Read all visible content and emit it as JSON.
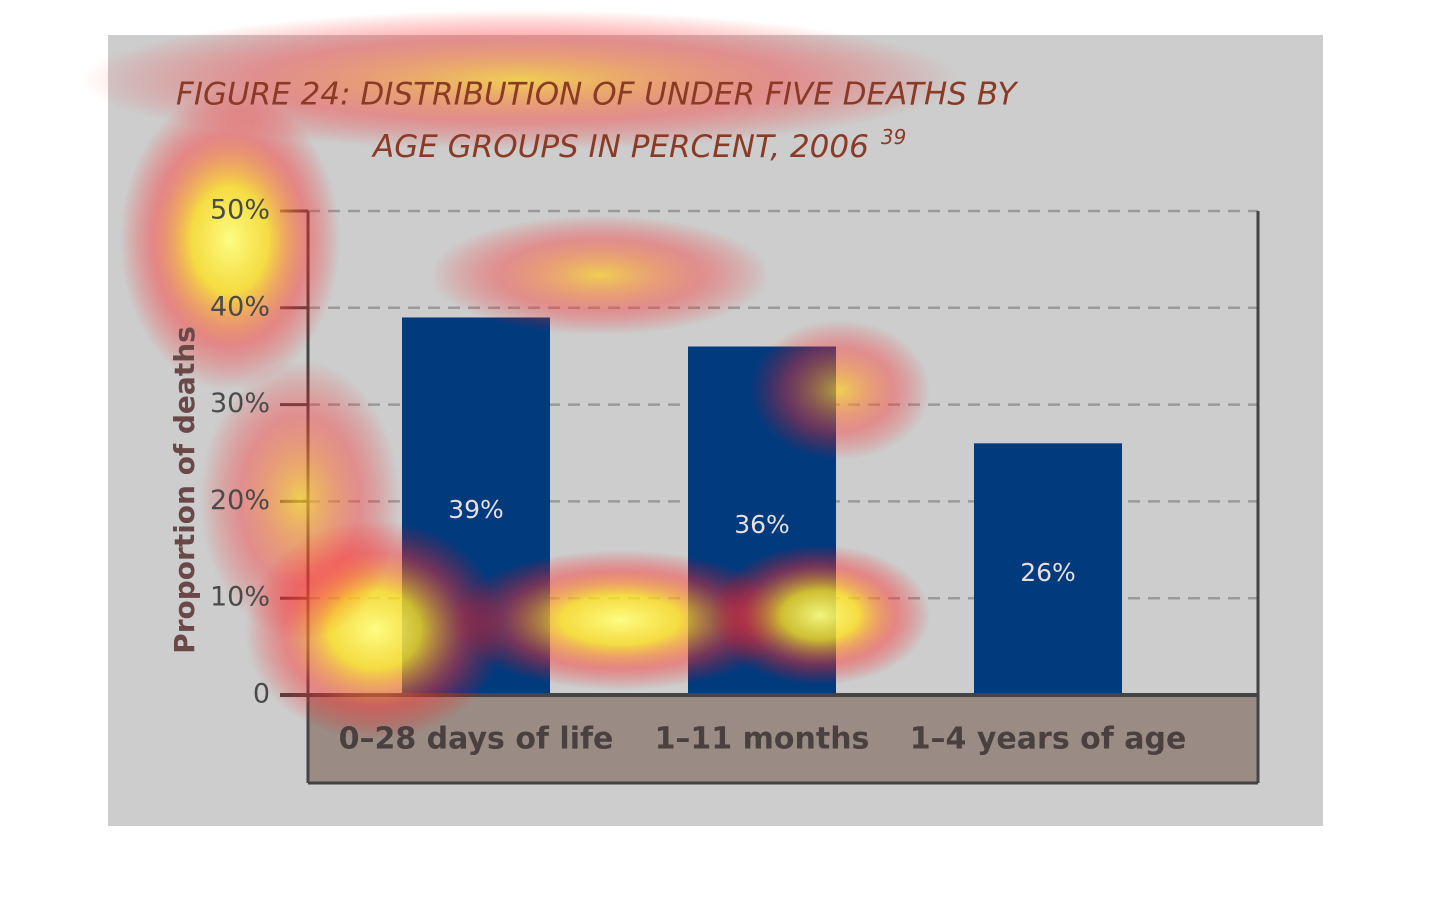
{
  "chart_data": {
    "type": "bar",
    "title": [
      "FIGURE 24: DISTRIBUTION OF UNDER FIVE DEATHS BY",
      "AGE GROUPS IN PERCENT, 2006"
    ],
    "title_note": "39",
    "ylabel": "Proportion of deaths",
    "categories": [
      "0–28 days of life",
      "1–11 months",
      "1–4 years of age"
    ],
    "values": [
      39,
      36,
      26
    ],
    "value_labels": [
      "39%",
      "36%",
      "26%"
    ],
    "color": "#023a7e",
    "ylim": [
      0,
      50
    ],
    "yticks": [
      0,
      {
        "value": 10,
        "label": "10%"
      },
      {
        "value": 20,
        "label": "20%"
      },
      {
        "value": 30,
        "label": "30%"
      },
      {
        "value": 40,
        "label": "40%"
      },
      {
        "value": 50,
        "label": "50%"
      }
    ],
    "grid": true
  }
}
